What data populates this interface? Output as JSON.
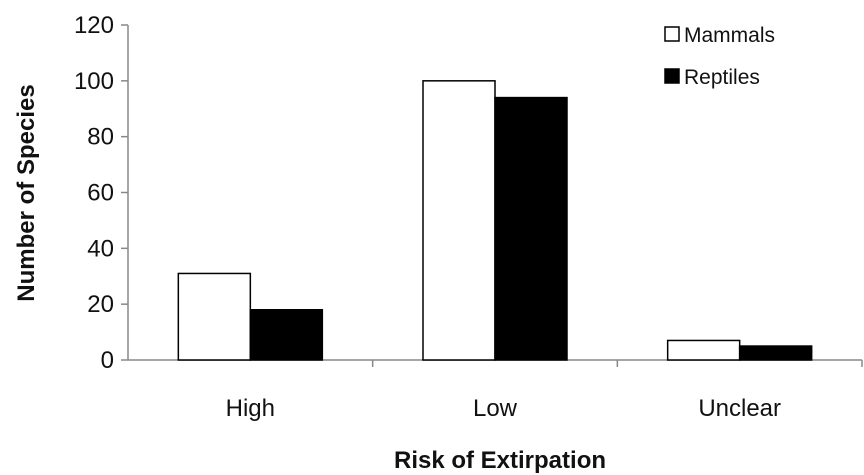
{
  "chart_data": {
    "type": "bar",
    "categories": [
      "High",
      "Low",
      "Unclear"
    ],
    "series": [
      {
        "name": "Mammals",
        "values": [
          31,
          100,
          7
        ],
        "color": "#ffffff"
      },
      {
        "name": "Reptiles",
        "values": [
          18,
          94,
          5
        ],
        "color": "#000000"
      }
    ],
    "yticks": [
      0,
      20,
      40,
      60,
      80,
      100,
      120
    ],
    "ylim": [
      0,
      120
    ],
    "xlabel": "Risk of Extirpation",
    "ylabel": "Number of Species",
    "grid": false,
    "legend_position": "top-right"
  }
}
